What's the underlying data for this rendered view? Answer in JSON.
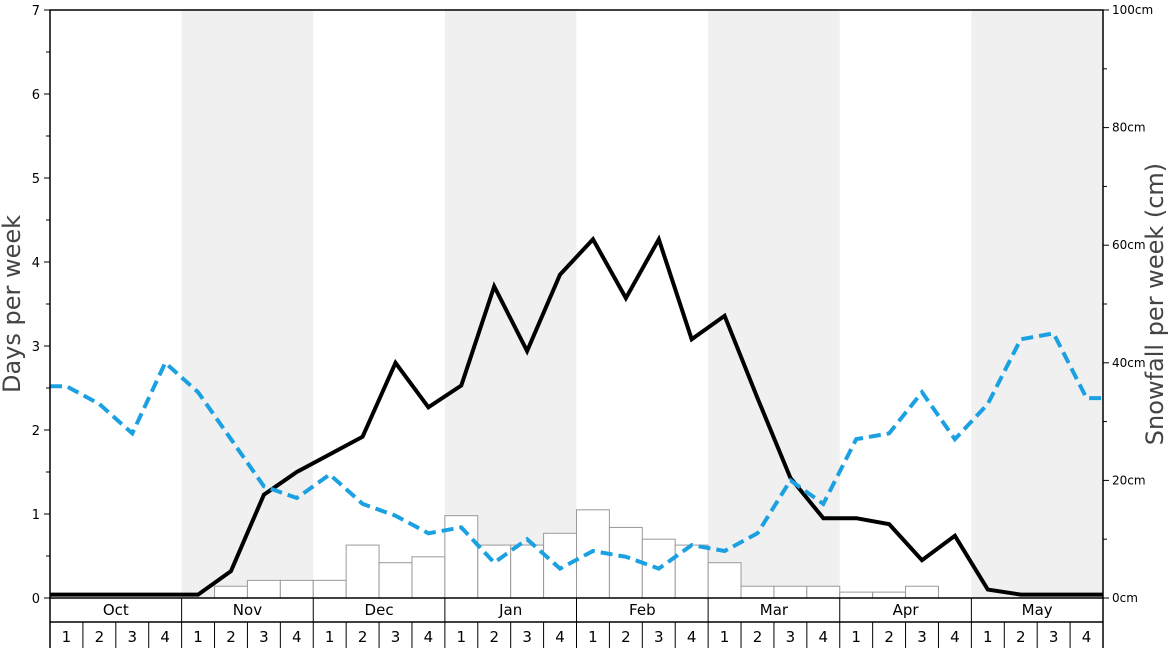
{
  "chart_data": {
    "type": "bar+line",
    "months": [
      "Oct",
      "Nov",
      "Dec",
      "Jan",
      "Feb",
      "Mar",
      "Apr",
      "May"
    ],
    "week_labels": [
      "1",
      "2",
      "3",
      "4"
    ],
    "y_left": {
      "label": "Days per week",
      "ylim": [
        0,
        7
      ],
      "ticks": [
        "0",
        "1",
        "2",
        "3",
        "4",
        "5",
        "6",
        "7"
      ]
    },
    "y_right": {
      "label": "Snowfall per week (cm)",
      "ylim": [
        0,
        100
      ],
      "ticks": [
        "0cm",
        "20cm",
        "40cm",
        "60cm",
        "80cm",
        "100cm"
      ]
    },
    "series": [
      {
        "kind": "bar",
        "axis": "right",
        "unit": "cm",
        "color": "#ffffff",
        "stroke": "#999999",
        "values": [
          0,
          0,
          0,
          0,
          0,
          2,
          3,
          3,
          3,
          9,
          6,
          7,
          14,
          9,
          9,
          11,
          15,
          12,
          10,
          9,
          6,
          2,
          2,
          2,
          1,
          1,
          2,
          0,
          0,
          0,
          0,
          0
        ]
      },
      {
        "kind": "line",
        "style": "solid",
        "axis": "left",
        "color": "#000000",
        "values": [
          0.04,
          0.04,
          0.04,
          0.04,
          0.04,
          0.32,
          1.23,
          1.5,
          1.71,
          1.92,
          2.8,
          2.27,
          2.53,
          3.71,
          2.94,
          3.85,
          4.27,
          3.57,
          4.27,
          3.08,
          3.36,
          2.38,
          1.43,
          0.95,
          0.95,
          0.88,
          0.45,
          0.74,
          0.1,
          0.04,
          0.04,
          0.04
        ]
      },
      {
        "kind": "line",
        "style": "dashed",
        "axis": "right",
        "unit": "cm",
        "color": "#1ba1e2",
        "values": [
          36,
          33,
          28,
          40,
          35,
          27,
          19,
          17,
          21,
          16,
          14,
          11,
          12,
          6,
          10,
          5,
          8,
          7,
          5,
          9,
          8,
          11,
          20,
          16,
          27,
          28,
          35,
          27,
          33,
          44,
          45,
          34
        ]
      }
    ],
    "background": {
      "shaded_months": [
        "Nov",
        "Jan",
        "Mar",
        "May"
      ],
      "shade_color": "#f0f0f0"
    }
  }
}
